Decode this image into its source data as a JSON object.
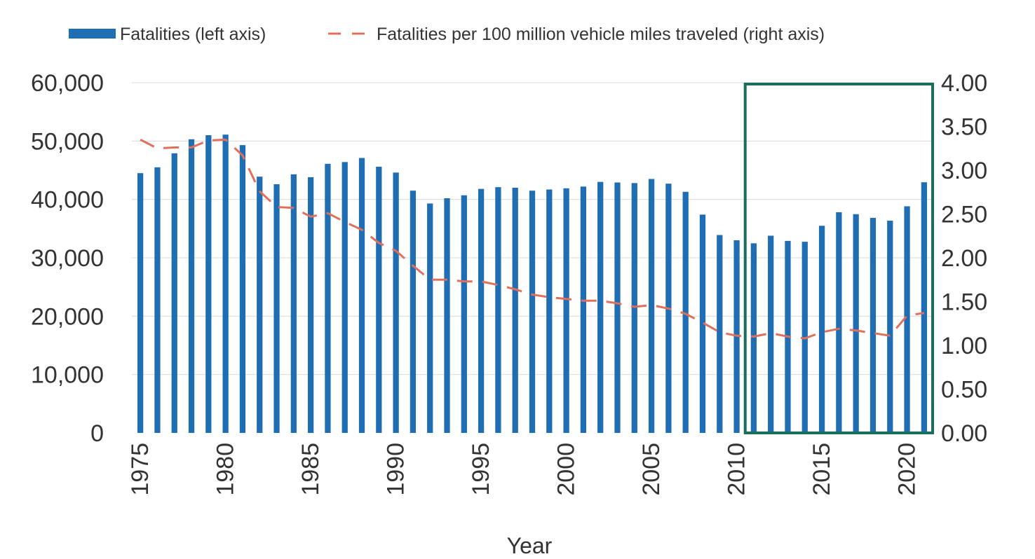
{
  "chart_data": {
    "type": "bar",
    "xlabel": "Year",
    "x": [
      1975,
      1976,
      1977,
      1978,
      1979,
      1980,
      1981,
      1982,
      1983,
      1984,
      1985,
      1986,
      1987,
      1988,
      1989,
      1990,
      1991,
      1992,
      1993,
      1994,
      1995,
      1996,
      1997,
      1998,
      1999,
      2000,
      2001,
      2002,
      2003,
      2004,
      2005,
      2006,
      2007,
      2008,
      2009,
      2010,
      2011,
      2012,
      2013,
      2014,
      2015,
      2016,
      2017,
      2018,
      2019,
      2020,
      2021
    ],
    "x_tick_labels": [
      "1975",
      "1980",
      "1985",
      "1990",
      "1995",
      "2000",
      "2005",
      "2010",
      "2015",
      "2020"
    ],
    "series": [
      {
        "name": "Fatalities (left axis)",
        "type": "bar",
        "axis": "left",
        "color": "#1f6db3",
        "values": [
          44500,
          45500,
          47900,
          50300,
          51000,
          51100,
          49300,
          43900,
          42600,
          44300,
          43800,
          46100,
          46400,
          47100,
          45600,
          44600,
          41500,
          39300,
          40200,
          40700,
          41800,
          42100,
          42000,
          41500,
          41700,
          41900,
          42200,
          43000,
          42900,
          42800,
          43500,
          42700,
          41300,
          37400,
          33900,
          32999,
          32479,
          33782,
          32893,
          32744,
          35484,
          37806,
          37473,
          36835,
          36355,
          38824,
          42939
        ]
      },
      {
        "name": "Fatalities per 100 million vehicle miles traveled (right axis)",
        "type": "line",
        "axis": "right",
        "style": "dashed",
        "color": "#e0705c",
        "values": [
          3.35,
          3.25,
          3.26,
          3.26,
          3.34,
          3.35,
          3.17,
          2.76,
          2.58,
          2.57,
          2.47,
          2.51,
          2.41,
          2.32,
          2.17,
          2.08,
          1.91,
          1.75,
          1.75,
          1.73,
          1.73,
          1.69,
          1.64,
          1.58,
          1.55,
          1.53,
          1.51,
          1.51,
          1.48,
          1.44,
          1.46,
          1.42,
          1.36,
          1.26,
          1.15,
          1.11,
          1.1,
          1.14,
          1.1,
          1.08,
          1.15,
          1.19,
          1.17,
          1.14,
          1.11,
          1.34,
          1.37
        ]
      }
    ],
    "y_left": {
      "lim": [
        0,
        60000
      ],
      "ticks": [
        0,
        10000,
        20000,
        30000,
        40000,
        50000,
        60000
      ],
      "tick_labels": [
        "0",
        "10,000",
        "20,000",
        "30,000",
        "40,000",
        "50,000",
        "60,000"
      ]
    },
    "y_right": {
      "lim": [
        0,
        4
      ],
      "ticks": [
        0,
        0.5,
        1,
        1.5,
        2,
        2.5,
        3,
        3.5,
        4
      ],
      "tick_labels": [
        "0.00",
        "0.50",
        "1.00",
        "1.50",
        "2.00",
        "2.50",
        "3.00",
        "3.50",
        "4.00"
      ]
    },
    "grid": "horizontal",
    "legend_position": "top",
    "highlight": {
      "x_start": 2011,
      "x_end": 2021,
      "color": "#1a6e5c"
    }
  }
}
